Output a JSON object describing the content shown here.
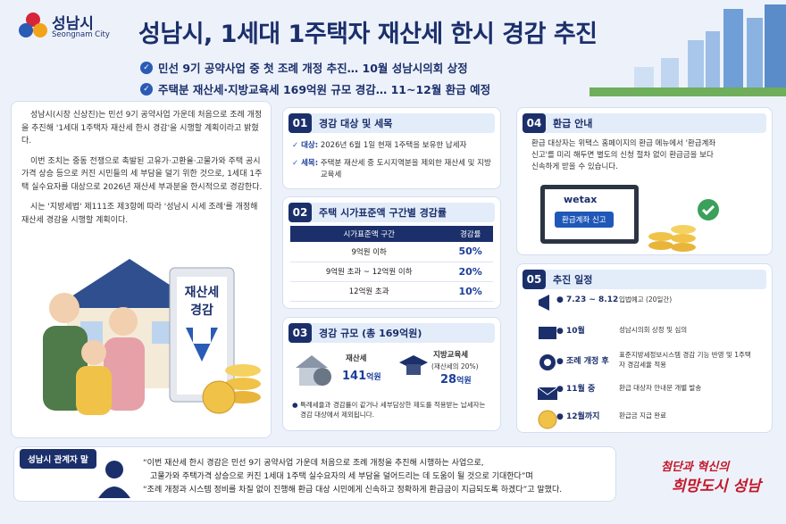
{
  "header": {
    "logo_ko": "성남시",
    "logo_en": "Seongnam City",
    "title": "성남시, 1세대 1주택자 재산세 한시 경감 추진",
    "bullets": [
      "민선 9기 공약사업 중 첫 조례 개정 추진… 10월 성남시의회 상정",
      "주택분 재산세·지방교육세 169억원 규모 경감… 11~12월 환급 예정"
    ]
  },
  "intro": [
    "성남시(시장 신상진)는 민선 9기 공약사업 가운데 처음으로 조례 개정을 추진해 '1세대 1주택자 재산세 한시 경감'을 시행할 계획이라고 밝혔다.",
    "이번 조치는 중동 전쟁으로 촉발된 고유가·고환율·고물가와 주택 공시가격 상승 등으로 커진 시민들의 세 부담을 덜기 위한 것으로, 1세대 1주택 실수요자를 대상으로 2026년 재산세 부과분을 한시적으로 경감한다.",
    "시는 '지방세법' 제111조 제3항에 따라 '성남시 시세 조례'를 개정해 재산세 경감을 시행할 계획이다."
  ],
  "illustration": {
    "sign": [
      "재산세",
      "경감"
    ]
  },
  "sections": [
    {
      "number": "01",
      "title": "경감 대상 및 세목",
      "items": [
        {
          "label": "대상:",
          "text": "2026년 6월 1일 현재 1주택을 보유한 납세자"
        },
        {
          "label": "세목:",
          "text": "주택분 재산세 중 도시지역분을 제외한 재산세 및 지방교육세"
        }
      ]
    },
    {
      "number": "02",
      "title": "주택 시가표준액 구간별 경감률",
      "table": {
        "header": [
          "시가표준액 구간",
          "경감률"
        ],
        "rows": [
          [
            "9억원 이하",
            "50%"
          ],
          [
            "9억원 초과 ~ 12억원 이하",
            "20%"
          ],
          [
            "12억원 초과",
            "10%"
          ]
        ]
      }
    },
    {
      "number": "03",
      "title": "경감 규모 (총 169억원)",
      "items": [
        {
          "label": "재산세",
          "value": "141",
          "unit": "억원"
        },
        {
          "label": "지방교육세",
          "sub": "(재산세의 20%)",
          "value": "28",
          "unit": "억원"
        }
      ],
      "note": "특례세율과 경감률이 같거나 세부담상한 제도를 적용받는 납세자는 경감 대상에서 제외됩니다."
    },
    {
      "number": "04",
      "title": "환급 안내",
      "text": "환급 대상자는 위택스 홈페이지의 환급 메뉴에서 '환급계좌 신고'를 미리 해두면 별도의 신청 절차 없이 환급금을 보다 신속하게 받을 수 있습니다.",
      "screen": {
        "brand": "wetax",
        "button": "환급계좌 신고"
      }
    },
    {
      "number": "05",
      "title": "추진 일정",
      "rows": [
        [
          "7.23 ~ 8.12",
          "입법예고 (20일간)"
        ],
        [
          "10월",
          "성남시의회 상정 및 심의"
        ],
        [
          "조례 개정 후",
          "표준지방세정보시스템 경감 기능 반영 및 1주택자 경감세율 적용"
        ],
        [
          "11월 중",
          "환급 대상자 안내문 개별 발송"
        ],
        [
          "12월까지",
          "환급금 지급 완료"
        ]
      ]
    }
  ],
  "quote": {
    "label": "성남시 관계자 말",
    "lines": [
      "“이번 재산세 한시 경감은 민선 9기 공약사업 가운데 처음으로 조례 개정을 추진해 시행하는 사업으로,",
      "고물가와 주택가격 상승으로 커진 1세대 1주택 실수요자의 세 부담을 덜어드리는 데 도움이 될 것으로 기대한다”며",
      "“조례 개정과 시스템 정비를 차질 없이 진행해 환급 대상 시민에게 신속하고 정확하게 환급금이 지급되도록 하겠다”고 말했다."
    ]
  },
  "slogan": [
    "첨단과 혁신의",
    "희망도시 성남"
  ]
}
